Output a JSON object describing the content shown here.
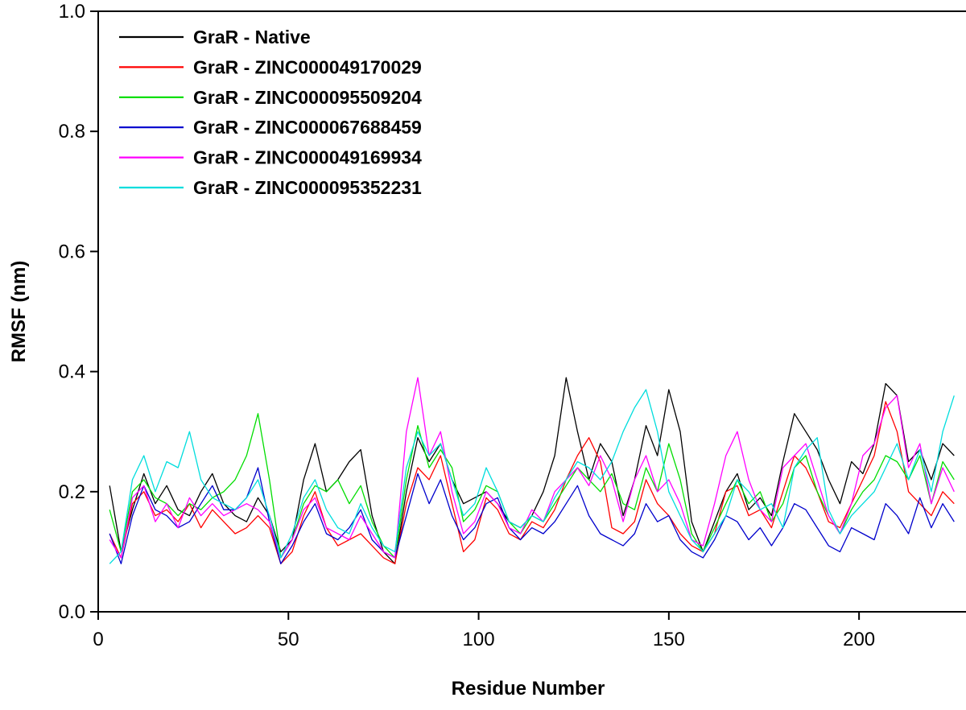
{
  "figure": {
    "kind": "RMSF line plot"
  },
  "chart_data": {
    "type": "line",
    "title": "",
    "xlabel": "Residue Number",
    "ylabel": "RMSF (nm)",
    "xlim": [
      0,
      226
    ],
    "ylim": [
      0,
      1.0
    ],
    "x_ticks": [
      0,
      50,
      100,
      150,
      200
    ],
    "x_tick_labels": [
      "0",
      "50",
      "100",
      "150",
      "200"
    ],
    "y_ticks": [
      0,
      0.2,
      0.4,
      0.6,
      0.8,
      1.0
    ],
    "y_tick_labels": [
      "0.0",
      "0.2",
      "0.4",
      "0.6",
      "0.8",
      "1.0"
    ],
    "grid": false,
    "legend_position": "top-left-inside",
    "x_start": 3,
    "x_step": 3,
    "series": [
      {
        "name": "GraR - Native",
        "color": "#000000",
        "values": [
          0.21,
          0.1,
          0.17,
          0.23,
          0.18,
          0.21,
          0.17,
          0.16,
          0.2,
          0.23,
          0.18,
          0.16,
          0.15,
          0.19,
          0.16,
          0.1,
          0.12,
          0.22,
          0.28,
          0.2,
          0.22,
          0.25,
          0.27,
          0.16,
          0.1,
          0.08,
          0.2,
          0.29,
          0.25,
          0.28,
          0.22,
          0.18,
          0.19,
          0.2,
          0.18,
          0.15,
          0.14,
          0.16,
          0.2,
          0.26,
          0.39,
          0.3,
          0.22,
          0.28,
          0.25,
          0.16,
          0.22,
          0.31,
          0.26,
          0.37,
          0.3,
          0.15,
          0.1,
          0.15,
          0.2,
          0.23,
          0.17,
          0.19,
          0.16,
          0.25,
          0.33,
          0.3,
          0.27,
          0.22,
          0.18,
          0.25,
          0.23,
          0.28,
          0.38,
          0.36,
          0.25,
          0.27,
          0.22,
          0.28,
          0.26
        ]
      },
      {
        "name": "GraR - ZINC000049170029",
        "color": "#ff0000",
        "values": [
          0.13,
          0.09,
          0.18,
          0.2,
          0.16,
          0.17,
          0.15,
          0.18,
          0.14,
          0.17,
          0.15,
          0.13,
          0.14,
          0.16,
          0.14,
          0.08,
          0.1,
          0.16,
          0.2,
          0.14,
          0.11,
          0.12,
          0.13,
          0.11,
          0.09,
          0.08,
          0.18,
          0.24,
          0.22,
          0.26,
          0.18,
          0.1,
          0.12,
          0.19,
          0.17,
          0.13,
          0.12,
          0.15,
          0.14,
          0.17,
          0.22,
          0.26,
          0.29,
          0.25,
          0.14,
          0.13,
          0.15,
          0.22,
          0.18,
          0.16,
          0.13,
          0.11,
          0.1,
          0.13,
          0.2,
          0.21,
          0.16,
          0.17,
          0.14,
          0.2,
          0.26,
          0.24,
          0.2,
          0.15,
          0.14,
          0.18,
          0.22,
          0.26,
          0.35,
          0.3,
          0.2,
          0.18,
          0.16,
          0.2,
          0.18
        ]
      },
      {
        "name": "GraR - ZINC000095509204",
        "color": "#00dd00",
        "values": [
          0.17,
          0.1,
          0.2,
          0.22,
          0.19,
          0.18,
          0.16,
          0.18,
          0.17,
          0.19,
          0.2,
          0.22,
          0.26,
          0.33,
          0.22,
          0.09,
          0.12,
          0.18,
          0.21,
          0.2,
          0.22,
          0.18,
          0.21,
          0.15,
          0.11,
          0.09,
          0.22,
          0.31,
          0.24,
          0.27,
          0.24,
          0.15,
          0.17,
          0.21,
          0.2,
          0.15,
          0.13,
          0.16,
          0.15,
          0.18,
          0.21,
          0.24,
          0.22,
          0.2,
          0.23,
          0.18,
          0.17,
          0.24,
          0.2,
          0.28,
          0.22,
          0.13,
          0.1,
          0.14,
          0.18,
          0.22,
          0.18,
          0.2,
          0.15,
          0.18,
          0.24,
          0.26,
          0.2,
          0.16,
          0.13,
          0.17,
          0.2,
          0.22,
          0.26,
          0.25,
          0.22,
          0.26,
          0.18,
          0.25,
          0.22
        ]
      },
      {
        "name": "GraR - ZINC000067688459",
        "color": "#0000cc",
        "values": [
          0.13,
          0.08,
          0.16,
          0.21,
          0.17,
          0.16,
          0.14,
          0.15,
          0.18,
          0.21,
          0.17,
          0.17,
          0.19,
          0.24,
          0.15,
          0.08,
          0.11,
          0.15,
          0.18,
          0.13,
          0.12,
          0.14,
          0.17,
          0.12,
          0.1,
          0.09,
          0.16,
          0.23,
          0.18,
          0.22,
          0.16,
          0.12,
          0.14,
          0.18,
          0.19,
          0.14,
          0.12,
          0.14,
          0.13,
          0.15,
          0.18,
          0.21,
          0.16,
          0.13,
          0.12,
          0.11,
          0.13,
          0.18,
          0.15,
          0.16,
          0.12,
          0.1,
          0.09,
          0.12,
          0.16,
          0.15,
          0.12,
          0.14,
          0.11,
          0.14,
          0.18,
          0.17,
          0.14,
          0.11,
          0.1,
          0.14,
          0.13,
          0.12,
          0.18,
          0.16,
          0.13,
          0.19,
          0.14,
          0.18,
          0.15
        ]
      },
      {
        "name": "GraR - ZINC000049169934",
        "color": "#ff00ff",
        "values": [
          0.12,
          0.09,
          0.19,
          0.21,
          0.15,
          0.18,
          0.14,
          0.19,
          0.16,
          0.18,
          0.16,
          0.17,
          0.18,
          0.17,
          0.15,
          0.09,
          0.12,
          0.17,
          0.19,
          0.14,
          0.13,
          0.12,
          0.16,
          0.13,
          0.1,
          0.09,
          0.3,
          0.39,
          0.26,
          0.3,
          0.2,
          0.13,
          0.15,
          0.2,
          0.18,
          0.14,
          0.13,
          0.17,
          0.15,
          0.2,
          0.22,
          0.24,
          0.21,
          0.26,
          0.22,
          0.15,
          0.22,
          0.26,
          0.2,
          0.22,
          0.18,
          0.12,
          0.11,
          0.18,
          0.26,
          0.3,
          0.22,
          0.17,
          0.15,
          0.24,
          0.26,
          0.28,
          0.22,
          0.16,
          0.13,
          0.18,
          0.26,
          0.28,
          0.34,
          0.36,
          0.24,
          0.28,
          0.18,
          0.24,
          0.2
        ]
      },
      {
        "name": "GraR - ZINC000095352231",
        "color": "#00dddd",
        "values": [
          0.08,
          0.1,
          0.22,
          0.26,
          0.2,
          0.25,
          0.24,
          0.3,
          0.22,
          0.19,
          0.18,
          0.17,
          0.19,
          0.22,
          0.16,
          0.09,
          0.13,
          0.19,
          0.22,
          0.17,
          0.14,
          0.13,
          0.18,
          0.14,
          0.11,
          0.1,
          0.24,
          0.3,
          0.26,
          0.28,
          0.22,
          0.16,
          0.18,
          0.24,
          0.2,
          0.15,
          0.14,
          0.16,
          0.15,
          0.19,
          0.22,
          0.25,
          0.24,
          0.22,
          0.25,
          0.3,
          0.34,
          0.37,
          0.3,
          0.2,
          0.16,
          0.12,
          0.1,
          0.13,
          0.16,
          0.22,
          0.2,
          0.17,
          0.18,
          0.14,
          0.24,
          0.27,
          0.29,
          0.17,
          0.13,
          0.16,
          0.18,
          0.2,
          0.24,
          0.28,
          0.22,
          0.27,
          0.2,
          0.3,
          0.36
        ]
      }
    ]
  }
}
